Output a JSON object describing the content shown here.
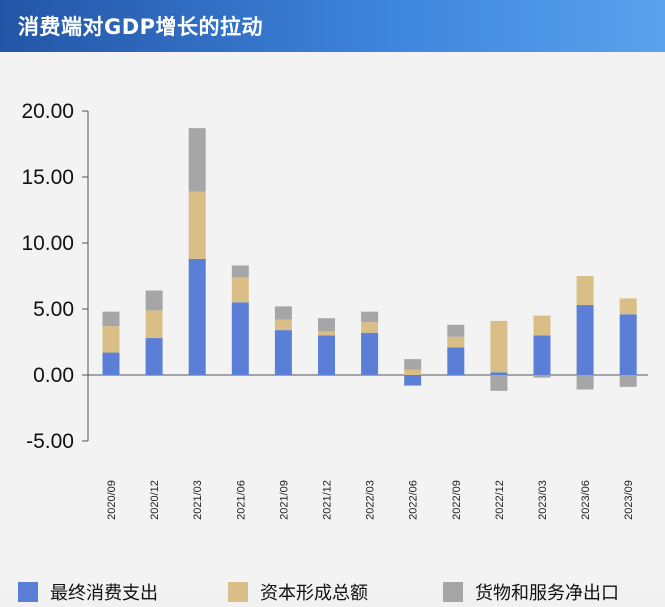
{
  "header": {
    "title": "消费端对GDP增长的拉动"
  },
  "colors": {
    "consumption": "#5b7fd6",
    "capital": "#d9bf85",
    "net_exports": "#a6a6a6",
    "axis": "#555555"
  },
  "chart_data": {
    "type": "bar",
    "stacked": true,
    "title": "",
    "xlabel": "",
    "ylabel": "",
    "ylim": [
      -5,
      20
    ],
    "yticks": [
      "20.00",
      "15.00",
      "10.00",
      "5.00",
      "0.00",
      "-5.00"
    ],
    "ytick_values": [
      20,
      15,
      10,
      5,
      0,
      -5
    ],
    "grid": false,
    "legend_position": "bottom",
    "categories": [
      "2020/09",
      "2020/12",
      "2021/03",
      "2021/06",
      "2021/09",
      "2021/12",
      "2022/03",
      "2022/06",
      "2022/09",
      "2022/12",
      "2023/03",
      "2023/06",
      "2023/09"
    ],
    "series": [
      {
        "name": "最终消费支出",
        "values": [
          1.7,
          2.8,
          8.8,
          5.5,
          3.4,
          3.0,
          3.2,
          -0.8,
          2.1,
          0.2,
          3.0,
          5.3,
          4.6
        ]
      },
      {
        "name": "资本形成总额",
        "values": [
          2.0,
          2.1,
          5.1,
          1.9,
          0.8,
          0.3,
          0.8,
          0.4,
          0.8,
          3.9,
          1.5,
          2.2,
          1.2
        ]
      },
      {
        "name": "货物和服务净出口",
        "values": [
          1.1,
          1.5,
          4.8,
          0.9,
          1.0,
          1.0,
          0.8,
          0.8,
          0.9,
          -1.2,
          -0.2,
          -1.1,
          -0.9
        ]
      }
    ]
  },
  "legend": [
    {
      "label": "最终消费支出"
    },
    {
      "label": "资本形成总额"
    },
    {
      "label": "货物和服务净出口"
    }
  ]
}
